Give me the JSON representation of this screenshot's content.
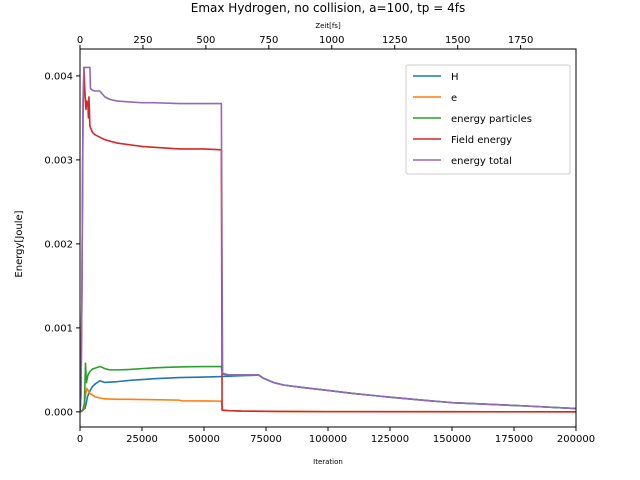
{
  "chart_data": {
    "type": "line",
    "title": "Emax Hydrogen, no collision, a=100, tp = 4fs",
    "xlabel": "Iteration",
    "x2label": "Zeit[fs]",
    "ylabel": "Energy[Joule]",
    "xlim": [
      0,
      200000
    ],
    "x2lim": [
      0,
      1970
    ],
    "ylim": [
      -0.00018,
      0.00432
    ],
    "xticks": [
      0,
      25000,
      50000,
      75000,
      100000,
      125000,
      150000,
      175000,
      200000
    ],
    "xtick_labels": [
      "0",
      "25000",
      "50000",
      "75000",
      "100000",
      "125000",
      "150000",
      "175000",
      "200000"
    ],
    "x2ticks": [
      0,
      250,
      500,
      750,
      1000,
      1250,
      1500,
      1750
    ],
    "x2tick_labels": [
      "0",
      "250",
      "500",
      "750",
      "1000",
      "1250",
      "1500",
      "1750"
    ],
    "yticks": [
      0.0,
      0.001,
      0.002,
      0.003,
      0.004
    ],
    "ytick_labels": [
      "0.000",
      "0.001",
      "0.002",
      "0.003",
      "0.004"
    ],
    "grid": false,
    "legend_position": "top-right",
    "series": [
      {
        "name": "H",
        "color": "#1f77b4",
        "points": [
          [
            0,
            0
          ],
          [
            500,
            1e-05
          ],
          [
            1200,
            2e-05
          ],
          [
            2000,
            4e-05
          ],
          [
            2500,
            0.0001
          ],
          [
            3000,
            0.00018
          ],
          [
            4000,
            0.00025
          ],
          [
            5000,
            0.0003
          ],
          [
            6000,
            0.00033
          ],
          [
            7000,
            0.00035
          ],
          [
            8000,
            0.00037
          ],
          [
            10000,
            0.00035
          ],
          [
            15000,
            0.00036
          ],
          [
            20000,
            0.000375
          ],
          [
            25000,
            0.000385
          ],
          [
            30000,
            0.000395
          ],
          [
            40000,
            0.000408
          ],
          [
            50000,
            0.000415
          ],
          [
            57000,
            0.00042
          ],
          [
            60000,
            0.000425
          ],
          [
            65000,
            0.00043
          ],
          [
            70000,
            0.000435
          ],
          [
            72000,
            0.000438
          ],
          [
            74000,
            0.0004
          ],
          [
            78000,
            0.00035
          ],
          [
            82000,
            0.00032
          ],
          [
            90000,
            0.00029
          ],
          [
            100000,
            0.000255
          ],
          [
            110000,
            0.00022
          ],
          [
            125000,
            0.000175
          ],
          [
            140000,
            0.000135
          ],
          [
            150000,
            0.00011
          ],
          [
            165000,
            9e-05
          ],
          [
            180000,
            7e-05
          ],
          [
            200000,
            4e-05
          ]
        ]
      },
      {
        "name": "e",
        "color": "#ff7f0e",
        "points": [
          [
            0,
            0
          ],
          [
            800,
            1e-05
          ],
          [
            1500,
            3e-05
          ],
          [
            2200,
            0.0002
          ],
          [
            2800,
            0.00028
          ],
          [
            3200,
            0.00026
          ],
          [
            4000,
            0.00022
          ],
          [
            5000,
            0.0002
          ],
          [
            6000,
            0.00018
          ],
          [
            8000,
            0.000165
          ],
          [
            10000,
            0.000155
          ],
          [
            15000,
            0.00015
          ],
          [
            20000,
            0.00015
          ],
          [
            30000,
            0.000145
          ],
          [
            40000,
            0.00014
          ],
          [
            41000,
            0.000132
          ],
          [
            50000,
            0.00013
          ],
          [
            57000,
            0.000128
          ],
          [
            57500,
            2e-05
          ],
          [
            60000,
            1.5e-05
          ],
          [
            65000,
            1e-05
          ],
          [
            80000,
            5e-06
          ],
          [
            100000,
            3e-06
          ],
          [
            150000,
            1e-06
          ],
          [
            200000,
            1e-06
          ]
        ]
      },
      {
        "name": "energy particles",
        "color": "#2ca02c",
        "points": [
          [
            0,
            0
          ],
          [
            1000,
            1e-05
          ],
          [
            1800,
            0.0001
          ],
          [
            2200,
            0.00058
          ],
          [
            2600,
            0.00035
          ],
          [
            3200,
            0.00044
          ],
          [
            4000,
            0.00048
          ],
          [
            5000,
            0.00051
          ],
          [
            6000,
            0.00052
          ],
          [
            7000,
            0.00053
          ],
          [
            8000,
            0.00054
          ],
          [
            9000,
            0.00053
          ],
          [
            10000,
            0.000515
          ],
          [
            12000,
            0.0005
          ],
          [
            15000,
            0.0005
          ],
          [
            20000,
            0.000505
          ],
          [
            25000,
            0.000515
          ],
          [
            30000,
            0.000525
          ],
          [
            35000,
            0.00053
          ],
          [
            40000,
            0.000535
          ],
          [
            45000,
            0.000538
          ],
          [
            50000,
            0.00054
          ],
          [
            57000,
            0.00054
          ],
          [
            57500,
            0.00045
          ],
          [
            60000,
            0.00044
          ],
          [
            65000,
            0.00044
          ],
          [
            70000,
            0.00044
          ],
          [
            72000,
            0.00044
          ],
          [
            74000,
            0.0004
          ],
          [
            78000,
            0.00035
          ],
          [
            82000,
            0.00032
          ],
          [
            90000,
            0.00029
          ],
          [
            100000,
            0.000255
          ],
          [
            110000,
            0.00022
          ],
          [
            125000,
            0.000175
          ],
          [
            140000,
            0.000135
          ],
          [
            150000,
            0.00011
          ],
          [
            165000,
            9e-05
          ],
          [
            180000,
            7e-05
          ],
          [
            200000,
            4e-05
          ]
        ]
      },
      {
        "name": "Field energy",
        "color": "#d62728",
        "points": [
          [
            0,
            0
          ],
          [
            400,
            0.0002
          ],
          [
            800,
            0.0015
          ],
          [
            1200,
            0.0035
          ],
          [
            1600,
            0.0041
          ],
          [
            2000,
            0.0038
          ],
          [
            2400,
            0.0036
          ],
          [
            2800,
            0.0037
          ],
          [
            3200,
            0.00365
          ],
          [
            3400,
            0.0035
          ],
          [
            3600,
            0.00375
          ],
          [
            4000,
            0.0034
          ],
          [
            5000,
            0.00333
          ],
          [
            6000,
            0.0033
          ],
          [
            8000,
            0.00327
          ],
          [
            10000,
            0.00324
          ],
          [
            15000,
            0.0032
          ],
          [
            20000,
            0.00318
          ],
          [
            25000,
            0.00316
          ],
          [
            30000,
            0.00315
          ],
          [
            40000,
            0.00313
          ],
          [
            50000,
            0.00313
          ],
          [
            57000,
            0.00312
          ],
          [
            57300,
            2e-05
          ],
          [
            60000,
            1.5e-05
          ],
          [
            65000,
            1e-05
          ],
          [
            80000,
            5e-06
          ],
          [
            100000,
            3e-06
          ],
          [
            150000,
            2e-06
          ],
          [
            200000,
            1e-06
          ]
        ]
      },
      {
        "name": "energy total",
        "color": "#9467bd",
        "points": [
          [
            0,
            0
          ],
          [
            400,
            0.0002
          ],
          [
            800,
            0.0015
          ],
          [
            1200,
            0.0037
          ],
          [
            1600,
            0.0041
          ],
          [
            2000,
            0.0041
          ],
          [
            3000,
            0.0041
          ],
          [
            4000,
            0.0041
          ],
          [
            4200,
            0.00385
          ],
          [
            5000,
            0.00383
          ],
          [
            6000,
            0.00382
          ],
          [
            8000,
            0.00382
          ],
          [
            10000,
            0.00375
          ],
          [
            12000,
            0.00372
          ],
          [
            15000,
            0.0037
          ],
          [
            20000,
            0.00369
          ],
          [
            25000,
            0.00368
          ],
          [
            30000,
            0.00368
          ],
          [
            40000,
            0.00367
          ],
          [
            50000,
            0.00367
          ],
          [
            57000,
            0.00367
          ],
          [
            57500,
            0.00046
          ],
          [
            60000,
            0.00044
          ],
          [
            65000,
            0.00044
          ],
          [
            70000,
            0.00044
          ],
          [
            72000,
            0.00044
          ],
          [
            74000,
            0.0004
          ],
          [
            78000,
            0.00035
          ],
          [
            82000,
            0.00032
          ],
          [
            90000,
            0.00029
          ],
          [
            100000,
            0.000255
          ],
          [
            110000,
            0.00022
          ],
          [
            125000,
            0.000175
          ],
          [
            140000,
            0.000135
          ],
          [
            150000,
            0.00011
          ],
          [
            165000,
            9e-05
          ],
          [
            180000,
            7e-05
          ],
          [
            200000,
            4e-05
          ]
        ]
      }
    ]
  }
}
